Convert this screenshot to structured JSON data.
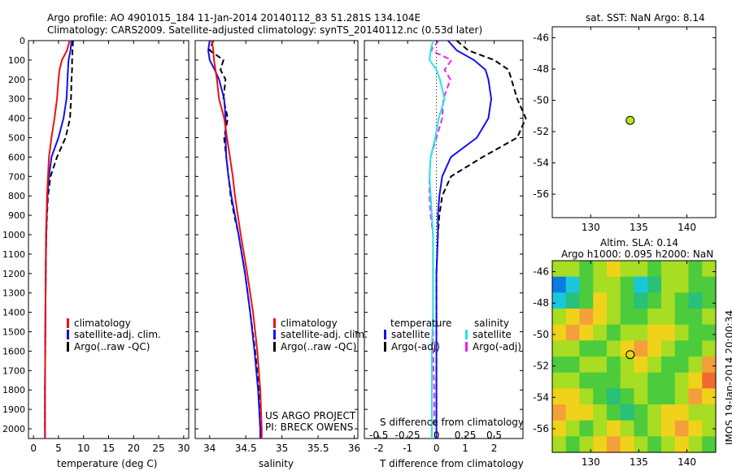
{
  "header": {
    "line1": "Argo profile: AO 4901015_184 11-Jan-2014 20140112_83 51.281S 134.104E",
    "line2": "Climatology: CARS2009. Satellite-adjusted climatology: synTS_20140112.nc (0.53d later)"
  },
  "depth_ticks": [
    "0",
    "100",
    "200",
    "300",
    "400",
    "500",
    "600",
    "700",
    "800",
    "900",
    "1000",
    "1100",
    "1200",
    "1300",
    "1400",
    "1500",
    "1600",
    "1700",
    "1800",
    "1900",
    "2000"
  ],
  "credits": {
    "project": "US ARGO PROJECT",
    "pi": "PI: BRECK OWENS"
  },
  "watermark": "IMOS 19-Jan-2014 20:00:34",
  "colors": {
    "climatology": "#ee1111",
    "satellite": "#1111ee",
    "argo": "#000000",
    "sal_satellite": "#22e6e6",
    "sal_argo": "#ee22ee",
    "marker": "#b6e61e"
  },
  "legend_main": {
    "climatology": "climatology",
    "satellite": "satellite-adj. clim.",
    "argo": "Argo(..raw -QC)"
  },
  "legend_diff": {
    "temperature": "temperature",
    "salinity": "salinity",
    "t_satellite": "satellite",
    "t_argo": "Argo(-adj)",
    "s_satellite": "satellite",
    "s_argo": "Argo(-adj)"
  },
  "chart_data": [
    {
      "type": "line",
      "name": "temperature",
      "xlabel": "temperature (deg C)",
      "ylabel": "",
      "xlim": [
        -1,
        31
      ],
      "ylim": [
        2050,
        0
      ],
      "xticks": [
        "0",
        "5",
        "10",
        "15",
        "20",
        "25",
        "30"
      ],
      "y": [
        0,
        50,
        100,
        150,
        200,
        300,
        400,
        500,
        600,
        700,
        800,
        900,
        1000,
        1200,
        1400,
        1600,
        1800,
        2000,
        2050
      ],
      "series": [
        {
          "name": "climatology",
          "values": [
            7.2,
            6.7,
            5.7,
            5.2,
            5.0,
            4.7,
            4.2,
            3.6,
            3.1,
            2.9,
            2.7,
            2.6,
            2.5,
            2.45,
            2.4,
            2.35,
            2.3,
            2.3,
            2.3
          ]
        },
        {
          "name": "satellite-adj. clim.",
          "values": [
            7.6,
            7.4,
            7.0,
            6.9,
            6.8,
            6.6,
            6.0,
            5.0,
            3.6,
            3.1,
            2.8,
            2.65,
            2.55,
            2.45,
            2.4,
            2.35,
            2.3,
            2.3,
            2.3
          ]
        },
        {
          "name": "Argo(..raw -QC)",
          "values": [
            7.9,
            7.8,
            7.7,
            7.7,
            7.6,
            7.5,
            7.3,
            6.4,
            4.7,
            3.4,
            2.9,
            2.7,
            2.55,
            2.45,
            2.4,
            2.35,
            2.3,
            2.3,
            null
          ]
        }
      ]
    },
    {
      "type": "line",
      "name": "salinity",
      "xlabel": "salinity",
      "ylabel": "",
      "xlim": [
        33.8,
        36.05
      ],
      "ylim": [
        2050,
        0
      ],
      "xticks": [
        "34",
        "34.5",
        "35",
        "35.5",
        "36"
      ],
      "y": [
        0,
        50,
        100,
        150,
        200,
        300,
        400,
        500,
        600,
        700,
        800,
        900,
        1000,
        1200,
        1400,
        1600,
        1800,
        2000,
        2050
      ],
      "series": [
        {
          "name": "climatology",
          "values": [
            34.03,
            34.05,
            34.06,
            34.08,
            34.1,
            34.13,
            34.2,
            34.24,
            34.28,
            34.32,
            34.35,
            34.39,
            34.43,
            34.52,
            34.6,
            34.66,
            34.7,
            34.72,
            34.72
          ]
        },
        {
          "name": "satellite-adj. clim.",
          "values": [
            34.0,
            33.98,
            34.0,
            34.07,
            34.13,
            34.2,
            34.22,
            34.22,
            34.23,
            34.26,
            34.3,
            34.35,
            34.4,
            34.49,
            34.56,
            34.62,
            34.67,
            34.7,
            34.7
          ]
        },
        {
          "name": "Argo(..raw -QC)",
          "values": [
            34.05,
            34.0,
            34.19,
            34.15,
            34.22,
            34.19,
            34.25,
            34.2,
            34.23,
            34.26,
            34.29,
            34.34,
            34.4,
            34.49,
            34.56,
            34.63,
            34.68,
            34.7,
            null
          ]
        }
      ]
    },
    {
      "type": "line",
      "name": "difference",
      "xlabel": "T difference from climatology",
      "x2label": "S difference from climatology",
      "xlim": [
        -2.5,
        3
      ],
      "ylim": [
        2050,
        0
      ],
      "xticks": [
        "-2",
        "-1",
        "0",
        "1",
        "2"
      ],
      "x2ticks": [
        "-0.5",
        "-0.25",
        "0",
        "0.25",
        "0.5"
      ],
      "y": [
        0,
        50,
        100,
        150,
        200,
        300,
        400,
        500,
        600,
        700,
        800,
        900,
        1000,
        1200,
        1400,
        1600,
        1800,
        2000,
        2050
      ],
      "series": [
        {
          "name": "temperature satellite",
          "values": [
            0.4,
            0.7,
            1.3,
            1.7,
            1.8,
            1.9,
            1.8,
            1.4,
            0.5,
            0.2,
            0.1,
            0.05,
            0.05,
            0,
            0,
            0,
            0,
            0,
            0
          ]
        },
        {
          "name": "temperature Argo(-adj)",
          "values": [
            0.7,
            1.1,
            2.0,
            2.5,
            2.6,
            2.8,
            3.1,
            2.8,
            1.6,
            0.5,
            0.2,
            0.1,
            0.05,
            0,
            0,
            0,
            0,
            0,
            null
          ]
        },
        {
          "name": "salinity satellite",
          "values": [
            -0.03,
            -0.05,
            -0.06,
            0.0,
            0.03,
            0.07,
            0.02,
            -0.01,
            -0.05,
            -0.06,
            -0.05,
            -0.04,
            -0.03,
            -0.03,
            -0.03,
            -0.04,
            -0.04,
            -0.04,
            -0.04
          ]
        },
        {
          "name": "salinity Argo(-adj)",
          "values": [
            0.02,
            -0.05,
            0.13,
            0.07,
            0.12,
            0.06,
            0.05,
            0.0,
            -0.05,
            -0.06,
            -0.06,
            -0.05,
            -0.03,
            -0.03,
            -0.03,
            -0.03,
            -0.02,
            -0.02,
            null
          ]
        }
      ]
    },
    {
      "type": "scatter",
      "name": "position",
      "title": "sat. SST: NaN Argo: 8.14",
      "xlim": [
        126,
        143
      ],
      "ylim": [
        -57.5,
        -45.3
      ],
      "xticks": [
        130,
        135,
        140
      ],
      "yticks": [
        -46,
        -48,
        -50,
        -52,
        -54,
        -56
      ],
      "points": [
        {
          "x": 134.104,
          "y": -51.281
        }
      ]
    },
    {
      "type": "heatmap",
      "name": "altimetry",
      "title": "Altim. SLA: 0.14",
      "subtitle": "Argo h1000: 0.095 h2000: NaN",
      "xlim": [
        126,
        143
      ],
      "ylim": [
        -57.5,
        -45.3
      ],
      "xticks": [
        130,
        135,
        140
      ],
      "yticks": [
        -46,
        -48,
        -50,
        -52,
        -54,
        -56
      ],
      "colormap": [
        "#0a7de0",
        "#19c7dc",
        "#28c07a",
        "#4ccb3c",
        "#a7dd22",
        "#f0d21a",
        "#f4a03a",
        "#f06a30"
      ],
      "grid": [
        [
          4,
          4,
          3,
          4,
          5,
          4,
          4,
          3,
          4,
          4,
          3,
          4
        ],
        [
          0,
          1,
          3,
          4,
          4,
          3,
          1,
          2,
          4,
          4,
          3,
          3
        ],
        [
          1,
          2,
          3,
          5,
          4,
          3,
          2,
          3,
          4,
          3,
          2,
          3
        ],
        [
          4,
          5,
          6,
          5,
          4,
          3,
          3,
          4,
          4,
          3,
          3,
          4
        ],
        [
          5,
          6,
          5,
          4,
          3,
          4,
          4,
          5,
          5,
          4,
          3,
          3
        ],
        [
          4,
          4,
          3,
          3,
          4,
          5,
          6,
          5,
          4,
          3,
          3,
          4
        ],
        [
          3,
          3,
          4,
          4,
          3,
          4,
          5,
          4,
          3,
          3,
          4,
          6
        ],
        [
          4,
          4,
          3,
          3,
          3,
          4,
          4,
          3,
          3,
          4,
          5,
          7
        ],
        [
          5,
          5,
          4,
          3,
          2,
          3,
          4,
          3,
          3,
          4,
          6,
          5
        ],
        [
          6,
          5,
          5,
          4,
          3,
          2,
          3,
          4,
          5,
          5,
          4,
          4
        ],
        [
          5,
          4,
          3,
          4,
          5,
          4,
          3,
          4,
          5,
          6,
          5,
          4
        ],
        [
          4,
          3,
          4,
          5,
          6,
          5,
          4,
          3,
          4,
          5,
          4,
          3
        ]
      ],
      "points": [
        {
          "x": 134.104,
          "y": -51.281
        }
      ]
    }
  ]
}
